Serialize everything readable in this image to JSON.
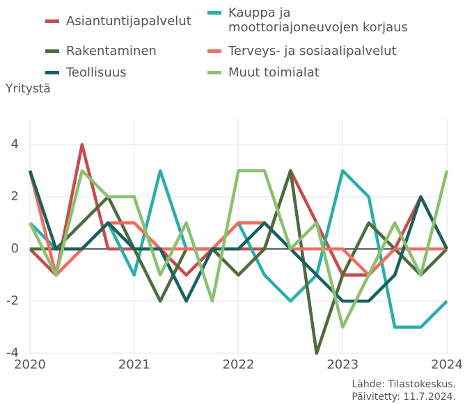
{
  "chart_data": {
    "type": "line",
    "y_label": "Yritystä",
    "source": [
      "Lähde: Tilastokeskus.",
      "Päivitetty: 11.7.2024."
    ],
    "x": [
      2020,
      2020.25,
      2020.5,
      2020.75,
      2021,
      2021.25,
      2021.5,
      2021.75,
      2022,
      2022.25,
      2022.5,
      2022.75,
      2023,
      2023.25,
      2023.5,
      2023.75,
      2024
    ],
    "xlim": [
      2020,
      2024
    ],
    "xticks": [
      2020,
      2021,
      2022,
      2023,
      2024
    ],
    "ylim": [
      -4,
      5
    ],
    "yticks": [
      -4,
      -2,
      0,
      2,
      4
    ],
    "grid": true,
    "series": [
      {
        "name": "Asiantuntijapalvelut",
        "color": "#c84b4b",
        "values": [
          0,
          -1,
          4,
          0,
          0,
          0,
          -1,
          0,
          0,
          0,
          3,
          1,
          -1,
          -1,
          0,
          2,
          0
        ]
      },
      {
        "name": "Kauppa ja moottoriajoneuvojen korjaus",
        "color": "#2aaeaa",
        "values": [
          1,
          0,
          0,
          1,
          -1,
          3,
          0,
          0,
          1,
          -1,
          -2,
          -1,
          3,
          2,
          -3,
          -3,
          -2
        ]
      },
      {
        "name": "Rakentaminen",
        "color": "#4d6b3c",
        "values": [
          0,
          0,
          1,
          2,
          0,
          -2,
          0,
          0,
          -1,
          0,
          3,
          -4,
          -1,
          1,
          0,
          -1,
          0
        ]
      },
      {
        "name": "Terveys- ja sosiaalipalvelut",
        "color": "#f26b5f",
        "values": [
          3,
          -1,
          0,
          1,
          1,
          0,
          0,
          0,
          1,
          1,
          0,
          0,
          0,
          -1,
          0,
          0,
          0
        ]
      },
      {
        "name": "Teollisuus",
        "color": "#17615e",
        "values": [
          3,
          0,
          0,
          1,
          0,
          0,
          -2,
          0,
          0,
          1,
          0,
          -1,
          -2,
          -2,
          -1,
          2,
          0
        ]
      },
      {
        "name": "Muut toimialat",
        "color": "#8cc070",
        "values": [
          1,
          -1,
          3,
          2,
          2,
          -1,
          1,
          -2,
          3,
          3,
          0,
          1,
          -3,
          -1,
          1,
          -1,
          3
        ]
      }
    ]
  }
}
